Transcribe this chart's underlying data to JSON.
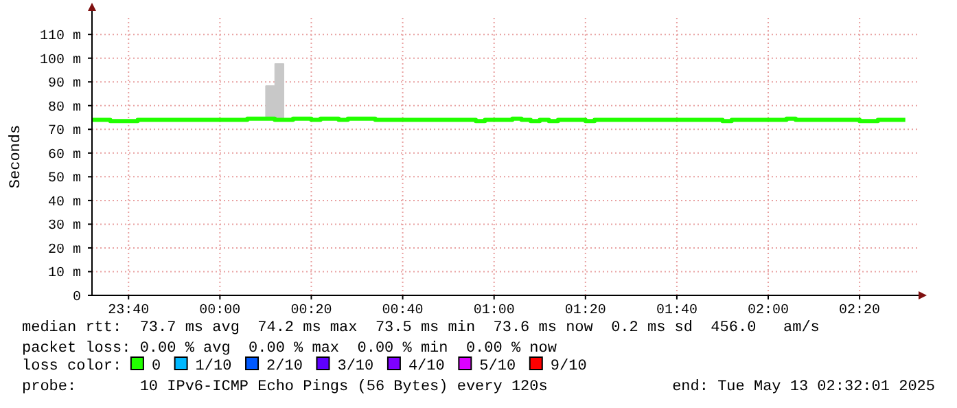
{
  "chart_data": {
    "type": "step",
    "ylabel": "Seconds",
    "legend_title": "loss color:",
    "legend": "bottom",
    "grid": true,
    "line_style": "solid",
    "xlim": [
      "2025-05-12T23:32",
      "2025-05-13T02:32"
    ],
    "xticks": [
      {
        "value": "2025-05-12T23:40",
        "label": "23:40"
      },
      {
        "value": "2025-05-13T00:00",
        "label": "00:00"
      },
      {
        "value": "2025-05-13T00:20",
        "label": "00:20"
      },
      {
        "value": "2025-05-13T00:40",
        "label": "00:40"
      },
      {
        "value": "2025-05-13T01:00",
        "label": "01:00"
      },
      {
        "value": "2025-05-13T01:20",
        "label": "01:20"
      },
      {
        "value": "2025-05-13T01:40",
        "label": "01:40"
      },
      {
        "value": "2025-05-13T02:00",
        "label": "02:00"
      },
      {
        "value": "2025-05-13T02:20",
        "label": "02:20"
      }
    ],
    "ylim": [
      0,
      117
    ],
    "yticks": [
      0,
      {
        "value": 10,
        "label": "10 m"
      },
      {
        "value": 20,
        "label": "20 m"
      },
      {
        "value": 30,
        "label": "30 m"
      },
      {
        "value": 40,
        "label": "40 m"
      },
      {
        "value": 50,
        "label": "50 m"
      },
      {
        "value": 60,
        "label": "60 m"
      },
      {
        "value": 70,
        "label": "70 m"
      },
      {
        "value": 80,
        "label": "80 m"
      },
      {
        "value": 90,
        "label": "90 m"
      },
      {
        "value": 100,
        "label": "100 m"
      },
      {
        "value": 110,
        "label": "110 m"
      }
    ],
    "x": [
      "2025-05-12T23:32",
      "2025-05-12T23:36",
      "2025-05-12T23:42",
      "2025-05-13T00:06",
      "2025-05-13T00:10",
      "2025-05-13T00:12",
      "2025-05-13T00:14",
      "2025-05-13T00:16",
      "2025-05-13T00:20",
      "2025-05-13T00:22",
      "2025-05-13T00:26",
      "2025-05-13T00:28",
      "2025-05-13T00:34",
      "2025-05-13T00:56",
      "2025-05-13T00:58",
      "2025-05-13T01:04",
      "2025-05-13T01:06",
      "2025-05-13T01:08",
      "2025-05-13T01:10",
      "2025-05-13T01:12",
      "2025-05-13T01:14",
      "2025-05-13T01:20",
      "2025-05-13T01:22",
      "2025-05-13T01:50",
      "2025-05-13T01:52",
      "2025-05-13T02:04",
      "2025-05-13T02:06",
      "2025-05-13T02:20",
      "2025-05-13T02:24",
      "2025-05-13T02:30"
    ],
    "series": [
      {
        "name": "0",
        "color": "#22ff00",
        "values": [
          74,
          73.5,
          74,
          74.5,
          74.5,
          74,
          74,
          74.5,
          74,
          74.5,
          74,
          74.5,
          74,
          73.5,
          74,
          74.5,
          74,
          73.5,
          74,
          73.5,
          74,
          73.5,
          74,
          73.5,
          74,
          74.5,
          74,
          73.5,
          74,
          74
        ],
        "lower": [
          74,
          73.5,
          74,
          74.5,
          74,
          74,
          74,
          74.5,
          74,
          74.5,
          74,
          74.5,
          74,
          73.5,
          74,
          74.5,
          74,
          73.5,
          74,
          73.5,
          74,
          73.5,
          74,
          73.5,
          74,
          74.5,
          74,
          73.5,
          74,
          74
        ],
        "upper": [
          74,
          73.5,
          74,
          74.5,
          88.4,
          97.7,
          74,
          74.5,
          74,
          74.5,
          74,
          74.5,
          74,
          73.5,
          74,
          74.5,
          74,
          73.5,
          74,
          73.5,
          74,
          73.5,
          74,
          73.5,
          74,
          74.5,
          74,
          73.5,
          74,
          74
        ]
      },
      {
        "name": "1/10",
        "color": "#00b8ff",
        "values": [
          null,
          null,
          null,
          null,
          null,
          null,
          null,
          null,
          null,
          null,
          null,
          null,
          null,
          null,
          null,
          null,
          null,
          null,
          null,
          null,
          null,
          null,
          null,
          null,
          null,
          null,
          null,
          null,
          null,
          null
        ]
      },
      {
        "name": "2/10",
        "color": "#0059ff",
        "values": [
          null,
          null,
          null,
          null,
          null,
          null,
          null,
          null,
          null,
          null,
          null,
          null,
          null,
          null,
          null,
          null,
          null,
          null,
          null,
          null,
          null,
          null,
          null,
          null,
          null,
          null,
          null,
          null,
          null,
          null
        ]
      },
      {
        "name": "3/10",
        "color": "#5e00ff",
        "values": [
          null,
          null,
          null,
          null,
          null,
          null,
          null,
          null,
          null,
          null,
          null,
          null,
          null,
          null,
          null,
          null,
          null,
          null,
          null,
          null,
          null,
          null,
          null,
          null,
          null,
          null,
          null,
          null,
          null,
          null
        ]
      },
      {
        "name": "4/10",
        "color": "#7e00ff",
        "values": [
          null,
          null,
          null,
          null,
          null,
          null,
          null,
          null,
          null,
          null,
          null,
          null,
          null,
          null,
          null,
          null,
          null,
          null,
          null,
          null,
          null,
          null,
          null,
          null,
          null,
          null,
          null,
          null,
          null,
          null
        ]
      },
      {
        "name": "5/10",
        "color": "#dd00ff",
        "values": [
          null,
          null,
          null,
          null,
          null,
          null,
          null,
          null,
          null,
          null,
          null,
          null,
          null,
          null,
          null,
          null,
          null,
          null,
          null,
          null,
          null,
          null,
          null,
          null,
          null,
          null,
          null,
          null,
          null,
          null
        ]
      },
      {
        "name": "9/10",
        "color": "#ff0000",
        "values": [
          null,
          null,
          null,
          null,
          null,
          null,
          null,
          null,
          null,
          null,
          null,
          null,
          null,
          null,
          null,
          null,
          null,
          null,
          null,
          null,
          null,
          null,
          null,
          null,
          null,
          null,
          null,
          null,
          null,
          null
        ]
      }
    ],
    "annotations": [
      "median rtt:  73.7 ms avg  74.2 ms max  73.5 ms min  73.6 ms now  0.2 ms sd  456.0   am/s",
      "packet loss: 0.00 % avg  0.00 % max  0.00 % min  0.00 % now",
      "probe:       10 IPv6-ICMP Echo Pings (56 Bytes) every 120s",
      "end: Tue May 13 02:32:01 2025"
    ]
  }
}
